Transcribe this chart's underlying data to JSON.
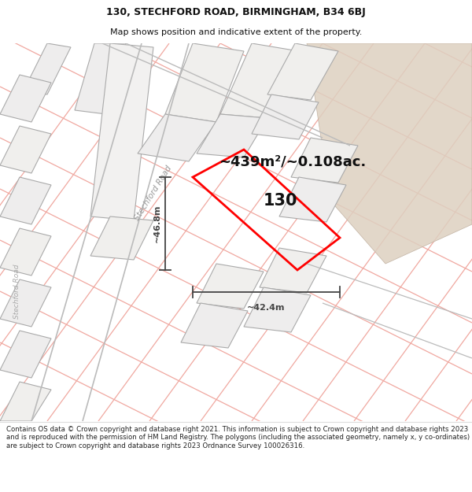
{
  "title_line1": "130, STECHFORD ROAD, BIRMINGHAM, B34 6BJ",
  "title_line2": "Map shows position and indicative extent of the property.",
  "footer_text": "Contains OS data © Crown copyright and database right 2021. This information is subject to Crown copyright and database rights 2023 and is reproduced with the permission of HM Land Registry. The polygons (including the associated geometry, namely x, y co-ordinates) are subject to Crown copyright and database rights 2023 Ordnance Survey 100026316.",
  "area_label": "~439m²/~0.108ac.",
  "number_label": "130",
  "dim_horizontal": "~42.4m",
  "dim_vertical": "~46.8m",
  "road_label": "Stechford Road",
  "road_label2": "Stechford Road",
  "map_bg": "#ffffff",
  "parcel_face": "#f0efed",
  "parcel_edge": "#aaaaaa",
  "road_line_color": "#f0a8a0",
  "road_line_color2": "#d09090",
  "tan_area": "#ddd0c0",
  "highlight_color": "#ff0000",
  "highlight_lw": 2.0,
  "dim_color": "#444444",
  "text_color": "#111111",
  "footer_fontsize": 6.2,
  "title_fontsize": 9,
  "subtitle_fontsize": 8,
  "area_fontsize": 13,
  "number_fontsize": 15,
  "dim_fontsize": 8
}
